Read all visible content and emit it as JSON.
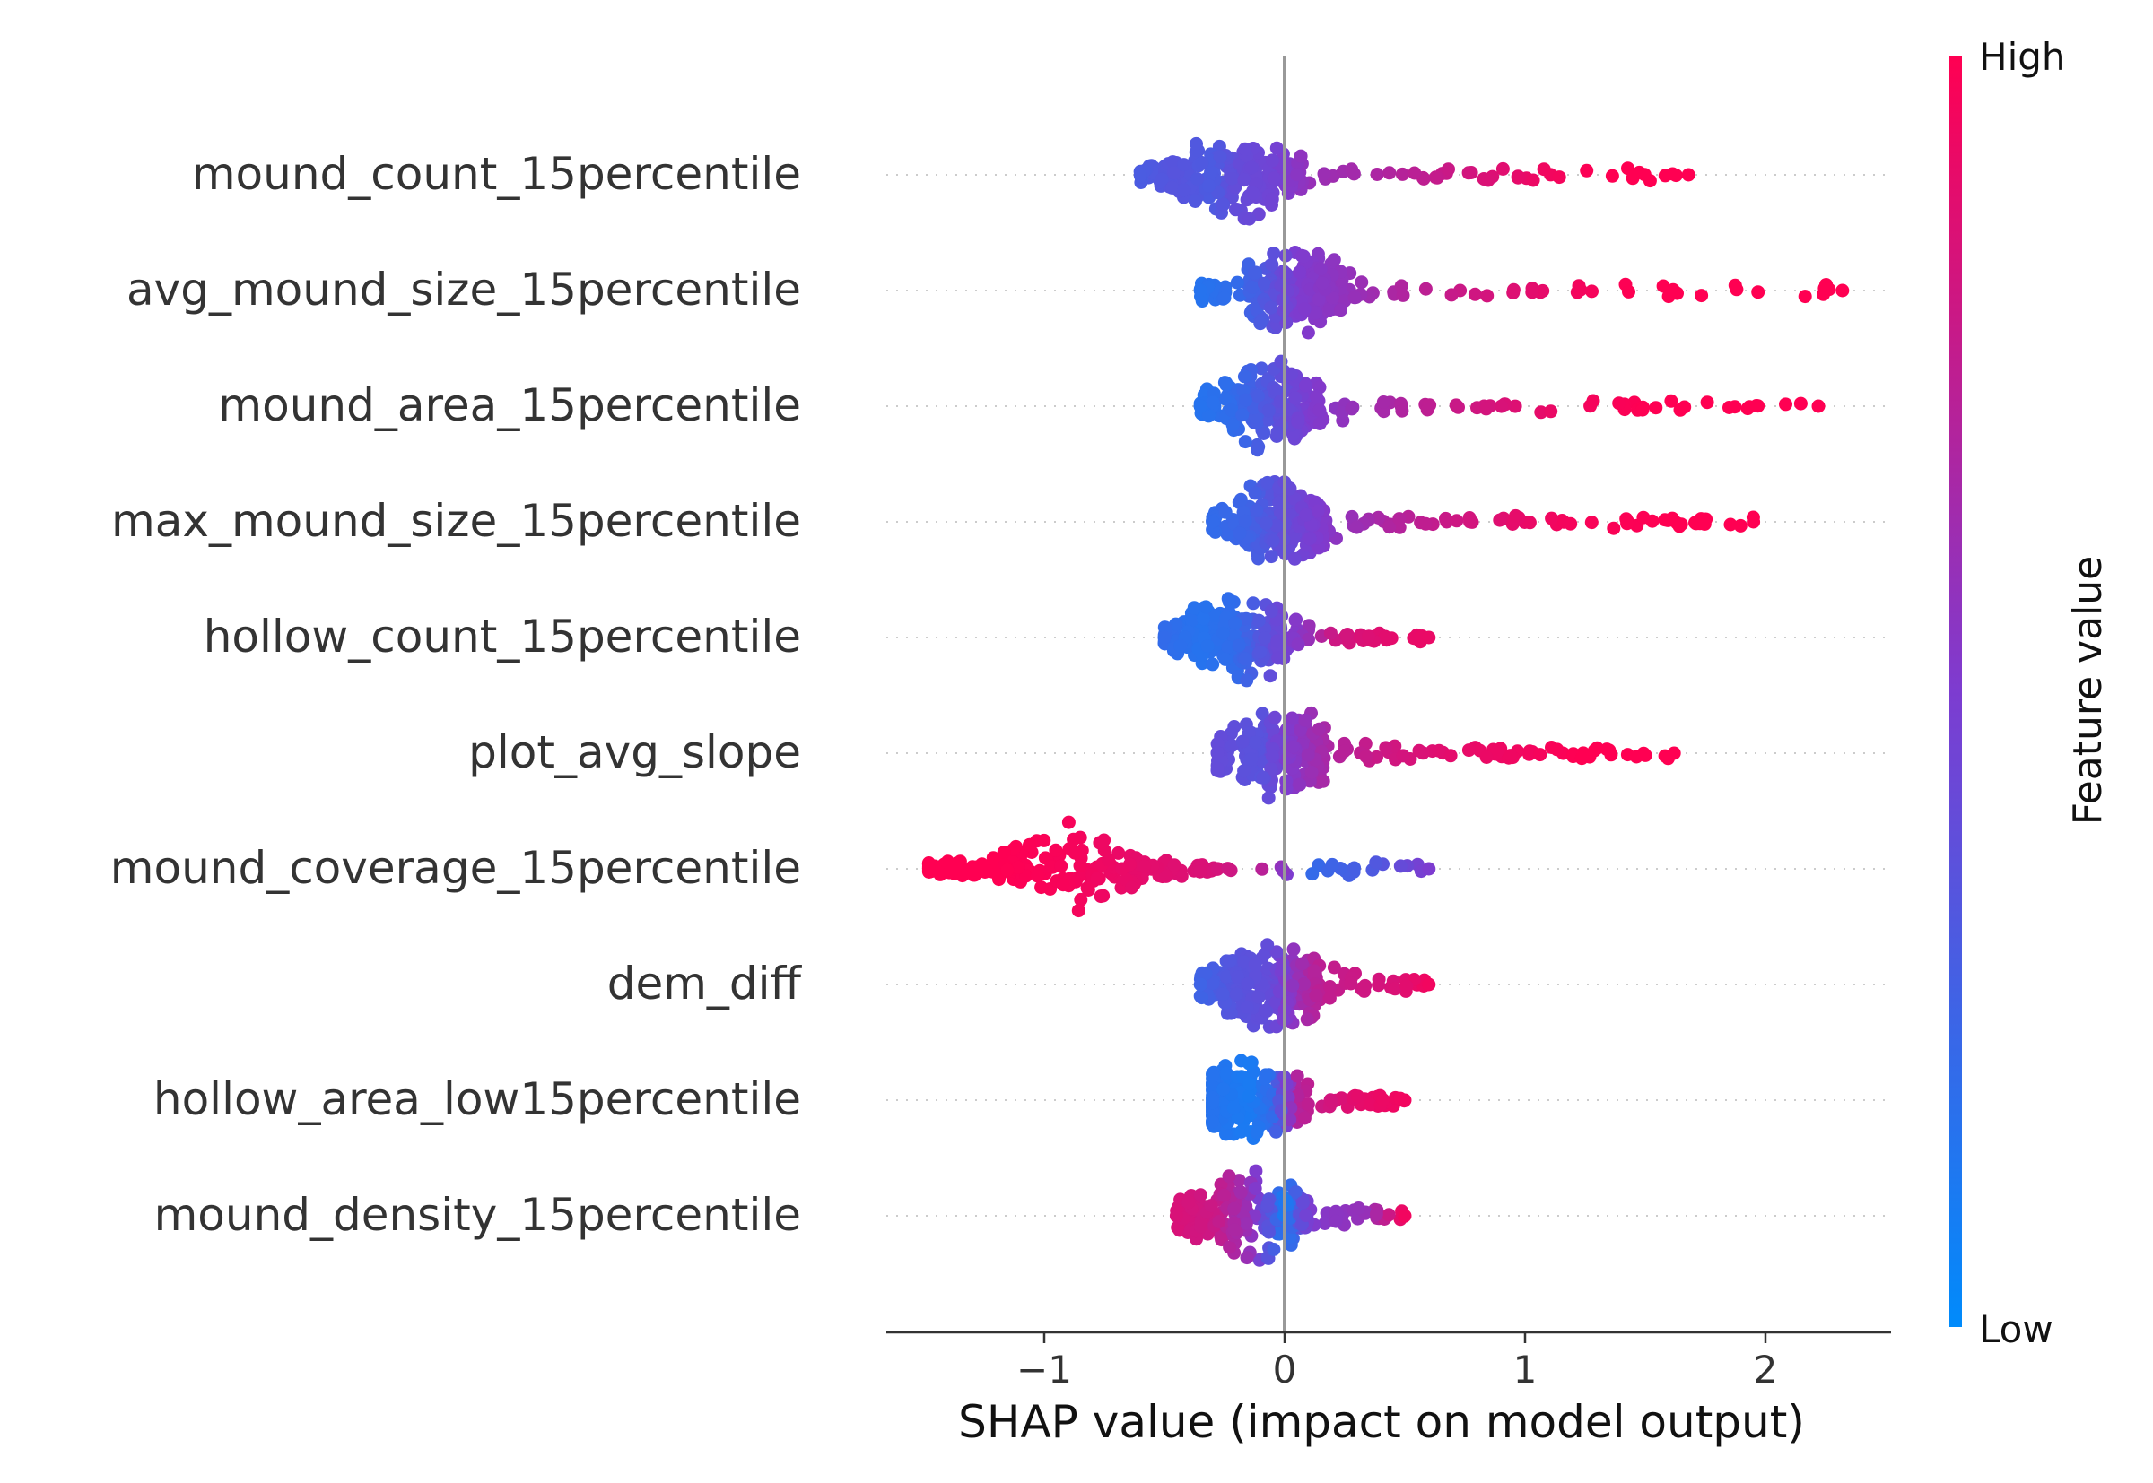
{
  "chart_data": {
    "type": "scatter",
    "subtype": "shap-beeswarm",
    "title": "",
    "xlabel": "SHAP value (impact on model output)",
    "xlim": [
      -1.65,
      2.5
    ],
    "xticks": [
      -1,
      0,
      1,
      2
    ],
    "xtick_labels": [
      "−1",
      "0",
      "1",
      "2"
    ],
    "grid": false,
    "features": [
      {
        "name": "mound_count_15percentile",
        "shap_range": [
          -0.6,
          1.68
        ],
        "points": [
          [
            -0.6,
            0.3
          ],
          [
            -0.45,
            0.35
          ],
          [
            -0.3,
            0.3
          ],
          [
            -0.2,
            0.4
          ],
          [
            -0.05,
            0.45
          ],
          [
            0.1,
            0.6
          ],
          [
            0.3,
            0.65
          ],
          [
            0.5,
            0.72
          ],
          [
            0.7,
            0.8
          ],
          [
            0.9,
            0.88
          ],
          [
            1.1,
            0.95
          ],
          [
            1.3,
            1.0
          ],
          [
            1.47,
            1.0
          ],
          [
            1.6,
            1.0
          ],
          [
            1.68,
            1.0
          ]
        ]
      },
      {
        "name": "avg_mound_size_15percentile",
        "shap_range": [
          -0.35,
          2.32
        ],
        "points": [
          [
            -0.35,
            0.15
          ],
          [
            -0.2,
            0.2
          ],
          [
            -0.1,
            0.3
          ],
          [
            0.05,
            0.5
          ],
          [
            0.3,
            0.6
          ],
          [
            0.6,
            0.75
          ],
          [
            0.9,
            0.85
          ],
          [
            1.2,
            0.95
          ],
          [
            1.45,
            1.0
          ],
          [
            1.75,
            1.0
          ],
          [
            2.0,
            1.0
          ],
          [
            2.32,
            1.0
          ]
        ]
      },
      {
        "name": "mound_area_15percentile",
        "shap_range": [
          -0.35,
          2.22
        ],
        "points": [
          [
            -0.35,
            0.15
          ],
          [
            -0.2,
            0.2
          ],
          [
            -0.05,
            0.35
          ],
          [
            0.1,
            0.5
          ],
          [
            0.3,
            0.6
          ],
          [
            0.6,
            0.75
          ],
          [
            0.9,
            0.85
          ],
          [
            1.2,
            0.95
          ],
          [
            1.52,
            1.0
          ],
          [
            1.88,
            1.0
          ],
          [
            2.22,
            1.0
          ]
        ]
      },
      {
        "name": "max_mound_size_15percentile",
        "shap_range": [
          -0.3,
          1.95
        ],
        "points": [
          [
            -0.3,
            0.2
          ],
          [
            -0.15,
            0.25
          ],
          [
            0.0,
            0.4
          ],
          [
            0.2,
            0.55
          ],
          [
            0.45,
            0.7
          ],
          [
            0.7,
            0.8
          ],
          [
            0.95,
            0.9
          ],
          [
            1.2,
            0.97
          ],
          [
            1.6,
            1.0
          ],
          [
            1.9,
            1.0
          ],
          [
            1.95,
            1.0
          ]
        ]
      },
      {
        "name": "hollow_count_15percentile",
        "shap_range": [
          -0.5,
          0.6
        ],
        "points": [
          [
            -0.5,
            0.2
          ],
          [
            -0.35,
            0.15
          ],
          [
            -0.2,
            0.2
          ],
          [
            -0.05,
            0.4
          ],
          [
            0.1,
            0.6
          ],
          [
            0.2,
            0.8
          ],
          [
            0.3,
            0.85
          ],
          [
            0.45,
            0.9
          ],
          [
            0.6,
            0.92
          ]
        ]
      },
      {
        "name": "plot_avg_slope",
        "shap_range": [
          -0.28,
          1.62
        ],
        "points": [
          [
            -0.28,
            0.4
          ],
          [
            -0.1,
            0.35
          ],
          [
            0.0,
            0.5
          ],
          [
            0.2,
            0.7
          ],
          [
            0.4,
            0.8
          ],
          [
            0.7,
            0.9
          ],
          [
            1.0,
            0.95
          ],
          [
            1.22,
            1.0
          ],
          [
            1.32,
            1.0
          ],
          [
            1.62,
            1.0
          ]
        ]
      },
      {
        "name": "mound_coverage_15percentile",
        "shap_range": [
          -1.48,
          0.6
        ],
        "points": [
          [
            -1.48,
            1.0
          ],
          [
            -1.2,
            1.0
          ],
          [
            -0.9,
            0.97
          ],
          [
            -0.6,
            0.9
          ],
          [
            -0.3,
            0.85
          ],
          [
            -0.05,
            0.7
          ],
          [
            0.1,
            0.2
          ],
          [
            0.2,
            0.25
          ],
          [
            0.35,
            0.3
          ],
          [
            0.6,
            0.5
          ]
        ]
      },
      {
        "name": "dem_diff",
        "shap_range": [
          -0.35,
          0.6
        ],
        "points": [
          [
            -0.35,
            0.25
          ],
          [
            -0.2,
            0.35
          ],
          [
            -0.05,
            0.4
          ],
          [
            0.05,
            0.6
          ],
          [
            0.15,
            0.75
          ],
          [
            0.3,
            0.8
          ],
          [
            0.45,
            0.85
          ],
          [
            0.6,
            0.95
          ]
        ]
      },
      {
        "name": "hollow_area_low15percentile",
        "shap_range": [
          -0.3,
          0.5
        ],
        "points": [
          [
            -0.3,
            0.15
          ],
          [
            -0.15,
            0.1
          ],
          [
            -0.05,
            0.2
          ],
          [
            0.05,
            0.7
          ],
          [
            0.15,
            0.8
          ],
          [
            0.3,
            0.9
          ],
          [
            0.5,
            0.95
          ]
        ]
      },
      {
        "name": "mound_density_15percentile",
        "shap_range": [
          -0.45,
          0.5
        ],
        "points": [
          [
            -0.45,
            0.85
          ],
          [
            -0.3,
            0.8
          ],
          [
            -0.15,
            0.6
          ],
          [
            -0.05,
            0.3
          ],
          [
            0.0,
            0.1
          ],
          [
            0.1,
            0.5
          ],
          [
            0.2,
            0.55
          ],
          [
            0.35,
            0.6
          ],
          [
            0.5,
            0.95
          ]
        ]
      }
    ],
    "colorbar": {
      "label": "Feature value",
      "high_label": "High",
      "low_label": "Low",
      "low_color": "#008bfb",
      "high_color": "#ff0052"
    },
    "zero_line_color": "#999999"
  }
}
